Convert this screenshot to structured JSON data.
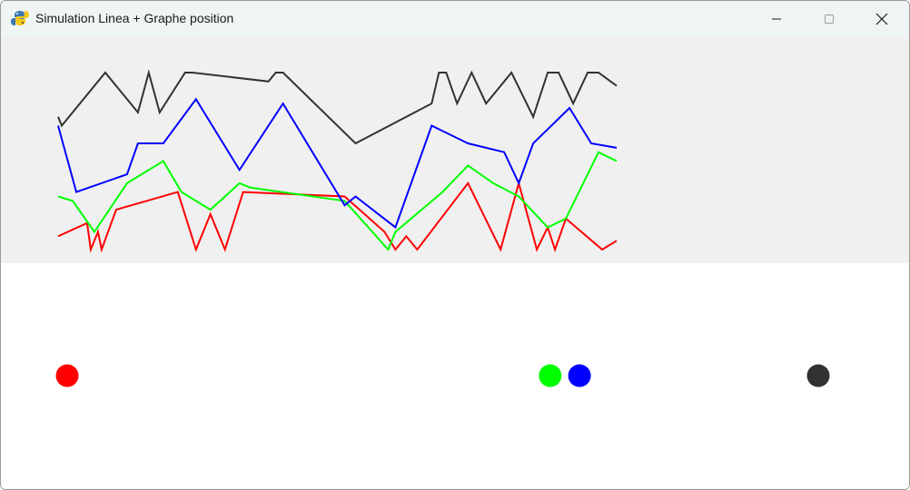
{
  "window": {
    "title": "Simulation Linea + Graphe position",
    "app_icon": "pygame-snake-icon",
    "controls": {
      "minimize_icon": "minimize-icon",
      "maximize_icon": "maximize-icon",
      "close_icon": "close-icon"
    }
  },
  "colors": {
    "graph_bg": "#f0f0f0",
    "sim_bg": "#ffffff",
    "red": "#ff0000",
    "green": "#00ff00",
    "blue": "#0000ff",
    "dark": "#323232"
  },
  "chart_data": {
    "type": "line",
    "title": "",
    "xlabel": "",
    "ylabel": "",
    "x": [
      0,
      1,
      2,
      3,
      4,
      5,
      6,
      7,
      8,
      9,
      10,
      11,
      12,
      13,
      14,
      15,
      16,
      17,
      18,
      19,
      20,
      21,
      22,
      23,
      24,
      25,
      26,
      27,
      28,
      29,
      30,
      31,
      32,
      33,
      34,
      35,
      36,
      37,
      38,
      39,
      40,
      41,
      42,
      43,
      44,
      45,
      46,
      47,
      48,
      49,
      50,
      51,
      52,
      53,
      54,
      55,
      56,
      57,
      58,
      59,
      60,
      61,
      62,
      63,
      64,
      65,
      66,
      67,
      68,
      69,
      70,
      71,
      72,
      73,
      74,
      75,
      76,
      77,
      78,
      79,
      80,
      81,
      82,
      83,
      84,
      85,
      86,
      87,
      88,
      89,
      90,
      91,
      92,
      93,
      94,
      95,
      96,
      97,
      98,
      99,
      100,
      101,
      102,
      103,
      104,
      105,
      106,
      107,
      108,
      109,
      110,
      111,
      112,
      113,
      114,
      115,
      116,
      117,
      118,
      119,
      120,
      121,
      122,
      123,
      124,
      125,
      126,
      127,
      128,
      129,
      130,
      131,
      132,
      133,
      134,
      135,
      136,
      137,
      138,
      139,
      140,
      141,
      142,
      143,
      144,
      145,
      146,
      147,
      148,
      149,
      150,
      151,
      152,
      153,
      154
    ],
    "series": [
      {
        "name": "red",
        "color": "#ff0000",
        "points": [
          [
            0,
            30
          ],
          [
            8,
            60
          ],
          [
            9,
            0
          ],
          [
            11,
            40
          ],
          [
            12,
            0
          ],
          [
            16,
            90
          ],
          [
            33,
            130
          ],
          [
            38,
            0
          ],
          [
            42,
            80
          ],
          [
            46,
            0
          ],
          [
            51,
            130
          ],
          [
            79,
            120
          ],
          [
            90,
            40
          ],
          [
            93,
            0
          ],
          [
            94,
            10
          ],
          [
            96,
            30
          ],
          [
            99,
            0
          ],
          [
            113,
            150
          ],
          [
            122,
            0
          ],
          [
            127,
            150
          ],
          [
            132,
            0
          ],
          [
            135,
            50
          ],
          [
            137,
            0
          ],
          [
            140,
            70
          ],
          [
            150,
            0
          ],
          [
            154,
            20
          ]
        ]
      },
      {
        "name": "green",
        "color": "#00ff00",
        "points": [
          [
            0,
            120
          ],
          [
            4,
            110
          ],
          [
            10,
            40
          ],
          [
            19,
            150
          ],
          [
            29,
            200
          ],
          [
            34,
            130
          ],
          [
            42,
            90
          ],
          [
            50,
            150
          ],
          [
            53,
            140
          ],
          [
            79,
            110
          ],
          [
            91,
            0
          ],
          [
            93,
            40
          ],
          [
            106,
            130
          ],
          [
            113,
            190
          ],
          [
            120,
            150
          ],
          [
            127,
            120
          ],
          [
            135,
            50
          ],
          [
            140,
            70
          ],
          [
            149,
            220
          ],
          [
            154,
            200
          ]
        ]
      },
      {
        "name": "blue",
        "color": "#0000ff",
        "points": [
          [
            0,
            280
          ],
          [
            5,
            130
          ],
          [
            19,
            170
          ],
          [
            22,
            240
          ],
          [
            29,
            240
          ],
          [
            38,
            340
          ],
          [
            50,
            180
          ],
          [
            62,
            330
          ],
          [
            79,
            100
          ],
          [
            82,
            120
          ],
          [
            93,
            50
          ],
          [
            103,
            280
          ],
          [
            113,
            240
          ],
          [
            123,
            220
          ],
          [
            127,
            150
          ],
          [
            131,
            240
          ],
          [
            141,
            320
          ],
          [
            147,
            240
          ],
          [
            154,
            230
          ]
        ]
      },
      {
        "name": "dark",
        "color": "#323232",
        "points": [
          [
            0,
            300
          ],
          [
            1,
            280
          ],
          [
            13,
            400
          ],
          [
            22,
            310
          ],
          [
            25,
            400
          ],
          [
            28,
            310
          ],
          [
            35,
            400
          ],
          [
            37,
            400
          ],
          [
            58,
            380
          ],
          [
            60,
            400
          ],
          [
            62,
            400
          ],
          [
            82,
            240
          ],
          [
            103,
            330
          ],
          [
            105,
            400
          ],
          [
            107,
            400
          ],
          [
            110,
            330
          ],
          [
            114,
            400
          ],
          [
            118,
            330
          ],
          [
            125,
            400
          ],
          [
            131,
            300
          ],
          [
            135,
            400
          ],
          [
            138,
            400
          ],
          [
            142,
            330
          ],
          [
            146,
            400
          ],
          [
            149,
            400
          ],
          [
            154,
            370
          ]
        ]
      }
    ],
    "xlim": [
      0,
      154
    ],
    "ylim": [
      0,
      400
    ]
  },
  "simulation": {
    "balls": [
      {
        "name": "red",
        "color": "#ff0000",
        "position": 0
      },
      {
        "name": "green",
        "color": "#00ff00",
        "position": 627
      },
      {
        "name": "blue",
        "color": "#0000ff",
        "position": 665
      },
      {
        "name": "dark",
        "color": "#323232",
        "position": 975
      }
    ],
    "track_length": 1000
  }
}
